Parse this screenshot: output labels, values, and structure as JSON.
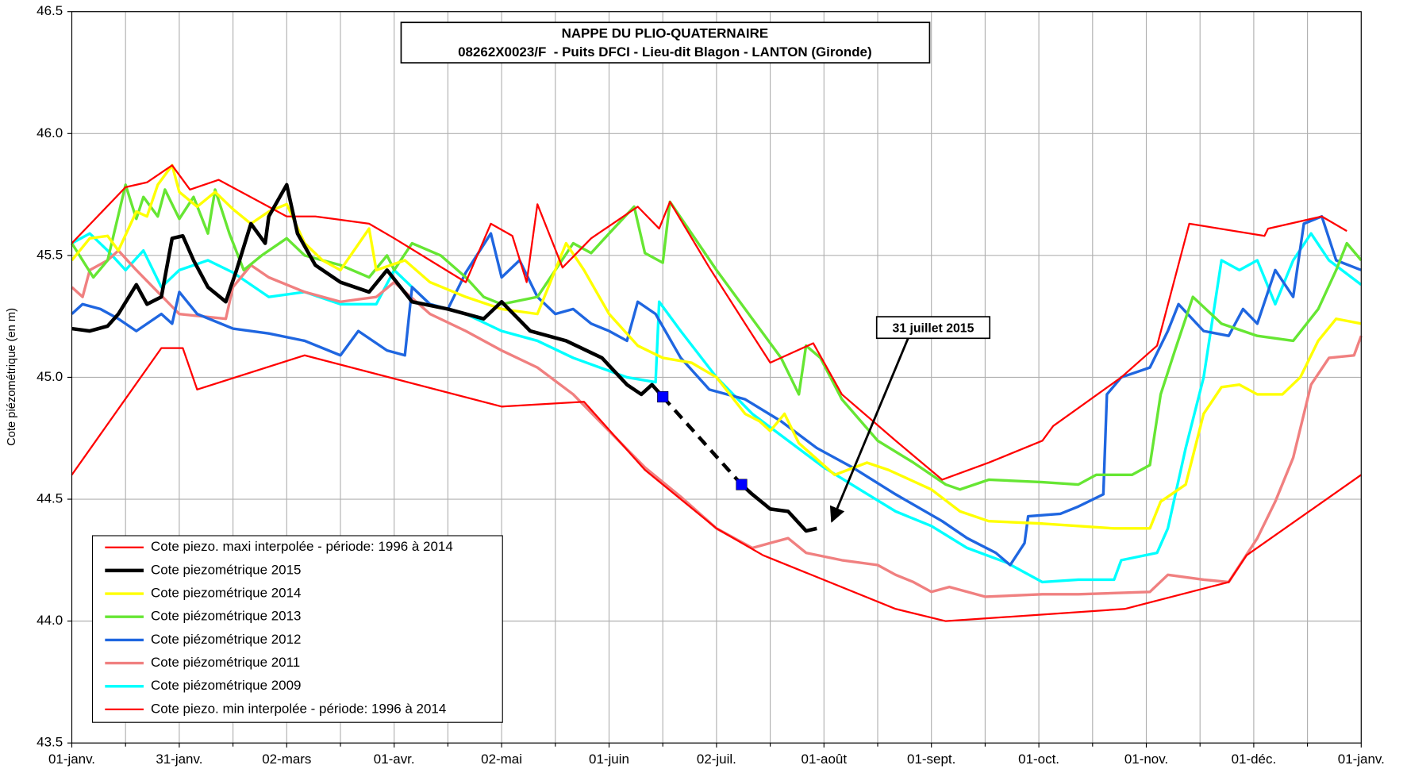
{
  "chart_data": {
    "type": "line",
    "title": "NAPPE DU PLIO-QUATERNAIRE",
    "subtitle": "08262X0023/F  - Puits DFCI - Lieu-dit Blagon - LANTON (Gironde)",
    "ylabel": "Cote piézométrique (en m)",
    "annotation": "31 juillet 2015",
    "xlim": [
      0,
      360
    ],
    "xticks": [
      {
        "value": 0,
        "label": "01-janv."
      },
      {
        "value": 30,
        "label": "31-janv."
      },
      {
        "value": 60,
        "label": "02-mars"
      },
      {
        "value": 90,
        "label": "01-avr."
      },
      {
        "value": 120,
        "label": "02-mai"
      },
      {
        "value": 150,
        "label": "01-juin"
      },
      {
        "value": 180,
        "label": "02-juil."
      },
      {
        "value": 210,
        "label": "01-août"
      },
      {
        "value": 240,
        "label": "01-sept."
      },
      {
        "value": 270,
        "label": "01-oct."
      },
      {
        "value": 300,
        "label": "01-nov."
      },
      {
        "value": 330,
        "label": "01-déc."
      },
      {
        "value": 360,
        "label": "01-janv."
      }
    ],
    "xminorticks": [
      15,
      45,
      75,
      105,
      135,
      165,
      195,
      225,
      255,
      285,
      315,
      345
    ],
    "ylim": [
      43.5,
      46.5
    ],
    "yticks": [
      43.5,
      {
        "value": 44,
        "label": "44.0"
      },
      44.5,
      {
        "value": 45,
        "label": "45.0"
      },
      45.5,
      {
        "value": 46,
        "label": "46.0"
      },
      46.5
    ],
    "grid": true,
    "legend": "lower left",
    "series": [
      {
        "name": "Cote piezo. maxi interpolée - période: 1996 à 2014",
        "color": "#ff0000",
        "line_width": 2,
        "x": [
          0,
          15,
          21,
          28,
          33,
          41,
          60,
          68,
          73,
          83,
          90,
          100,
          110,
          117,
          123,
          127,
          130,
          137,
          145,
          158,
          164,
          167,
          178,
          188,
          195,
          207,
          215,
          230,
          243,
          256,
          271,
          274,
          293,
          303,
          312,
          333,
          334,
          349,
          356
        ],
        "values": [
          45.55,
          45.78,
          45.8,
          45.87,
          45.77,
          45.81,
          45.66,
          45.66,
          45.65,
          45.63,
          45.57,
          45.48,
          45.39,
          45.63,
          45.58,
          45.39,
          45.71,
          45.45,
          45.57,
          45.7,
          45.61,
          45.72,
          45.45,
          45.22,
          45.06,
          45.14,
          44.93,
          44.74,
          44.58,
          44.65,
          44.74,
          44.8,
          45.0,
          45.13,
          45.63,
          45.58,
          45.61,
          45.66,
          45.6
        ]
      },
      {
        "name": "Cote piezométrique 2015",
        "color": "#000000",
        "line_width": 4,
        "gap_style": "dashed",
        "marker_color": "#0000ff",
        "x": [
          0,
          5,
          10,
          13,
          18,
          21,
          25,
          28,
          31,
          34,
          38,
          43,
          46,
          50,
          54,
          55,
          60,
          63,
          68,
          75,
          83,
          88,
          95,
          105,
          115,
          120,
          128,
          138,
          148,
          155,
          159,
          162,
          165,
          176,
          187,
          190,
          195,
          200,
          205,
          208
        ],
        "values": [
          45.2,
          45.19,
          45.21,
          45.26,
          45.38,
          45.3,
          45.33,
          45.57,
          45.58,
          45.48,
          45.37,
          45.31,
          45.44,
          45.63,
          45.55,
          45.66,
          45.79,
          45.59,
          45.46,
          45.39,
          45.35,
          45.44,
          45.31,
          45.28,
          45.24,
          45.31,
          45.19,
          45.15,
          45.08,
          44.97,
          44.93,
          44.97,
          44.92,
          null,
          44.56,
          44.52,
          44.46,
          44.45,
          44.37,
          44.38
        ]
      },
      {
        "name": "Cote piezométrique 2014",
        "color": "#ffff00",
        "line_width": 3,
        "x": [
          0,
          5,
          10,
          13,
          18,
          21,
          24,
          28,
          30,
          35,
          40,
          45,
          50,
          55,
          60,
          65,
          70,
          75,
          83,
          85,
          93,
          100,
          110,
          120,
          130,
          138,
          143,
          150,
          158,
          165,
          173,
          180,
          188,
          192,
          195,
          199,
          203,
          213,
          222,
          228,
          240,
          248,
          256,
          271,
          281,
          291,
          301,
          304,
          311,
          316,
          321,
          326,
          331,
          338,
          343,
          348,
          353,
          360
        ],
        "values": [
          45.48,
          45.57,
          45.58,
          45.52,
          45.68,
          45.66,
          45.79,
          45.87,
          45.76,
          45.7,
          45.76,
          45.69,
          45.63,
          45.68,
          45.71,
          45.55,
          45.48,
          45.44,
          45.61,
          45.44,
          45.48,
          45.39,
          45.33,
          45.28,
          45.26,
          45.55,
          45.44,
          45.26,
          45.13,
          45.08,
          45.06,
          45.0,
          44.85,
          44.82,
          44.78,
          44.85,
          44.73,
          44.6,
          44.65,
          44.62,
          44.54,
          44.45,
          44.41,
          44.4,
          44.39,
          44.38,
          44.38,
          44.49,
          44.56,
          44.85,
          44.96,
          44.97,
          44.93,
          44.93,
          45.0,
          45.15,
          45.24,
          45.22
        ]
      },
      {
        "name": "Cote piézométrique 2013",
        "color": "#66e633",
        "line_width": 3,
        "x": [
          0,
          3,
          6,
          10,
          15,
          18,
          20,
          24,
          26,
          30,
          34,
          38,
          40,
          44,
          48,
          53,
          60,
          65,
          75,
          83,
          88,
          90,
          95,
          103,
          110,
          115,
          120,
          130,
          135,
          140,
          145,
          150,
          157,
          160,
          165,
          167,
          180,
          190,
          198,
          203,
          205,
          209,
          215,
          225,
          235,
          244,
          248,
          256,
          271,
          281,
          286,
          296,
          301,
          304,
          308,
          313,
          321,
          331,
          341,
          348,
          353,
          356,
          360
        ],
        "values": [
          45.55,
          45.48,
          45.41,
          45.48,
          45.79,
          45.65,
          45.74,
          45.66,
          45.77,
          45.65,
          45.74,
          45.59,
          45.77,
          45.59,
          45.44,
          45.5,
          45.57,
          45.5,
          45.46,
          45.41,
          45.5,
          45.44,
          45.55,
          45.5,
          45.41,
          45.33,
          45.3,
          45.33,
          45.44,
          45.55,
          45.51,
          45.59,
          45.7,
          45.51,
          45.47,
          45.72,
          45.44,
          45.24,
          45.08,
          44.93,
          45.13,
          45.08,
          44.91,
          44.74,
          44.65,
          44.56,
          44.54,
          44.58,
          44.57,
          44.56,
          44.6,
          44.6,
          44.64,
          44.93,
          45.11,
          45.33,
          45.22,
          45.17,
          45.15,
          45.28,
          45.44,
          45.55,
          45.48
        ]
      },
      {
        "name": "Cote piézométrique 2012",
        "color": "#1f66e0",
        "line_width": 3,
        "x": [
          0,
          3,
          8,
          13,
          18,
          25,
          28,
          30,
          35,
          45,
          55,
          65,
          75,
          80,
          88,
          93,
          95,
          100,
          105,
          110,
          117,
          120,
          125,
          130,
          135,
          140,
          145,
          150,
          155,
          158,
          163,
          170,
          178,
          188,
          198,
          208,
          218,
          230,
          243,
          250,
          258,
          262,
          266,
          267,
          276,
          281,
          288,
          289,
          293,
          301,
          306,
          309,
          316,
          323,
          327,
          331,
          336,
          341,
          344,
          349,
          353,
          360
        ],
        "values": [
          45.26,
          45.3,
          45.28,
          45.24,
          45.19,
          45.26,
          45.22,
          45.35,
          45.26,
          45.2,
          45.18,
          45.15,
          45.09,
          45.19,
          45.11,
          45.09,
          45.37,
          45.3,
          45.28,
          45.43,
          45.59,
          45.41,
          45.48,
          45.33,
          45.26,
          45.28,
          45.22,
          45.19,
          45.15,
          45.31,
          45.26,
          45.08,
          44.95,
          44.91,
          44.82,
          44.71,
          44.63,
          44.52,
          44.41,
          44.34,
          44.28,
          44.23,
          44.32,
          44.43,
          44.44,
          44.47,
          44.52,
          44.93,
          45.0,
          45.04,
          45.19,
          45.3,
          45.19,
          45.17,
          45.28,
          45.22,
          45.44,
          45.33,
          45.63,
          45.66,
          45.48,
          45.44
        ]
      },
      {
        "name": "Cote piézométrique 2011",
        "color": "#f08080",
        "line_width": 3,
        "x": [
          0,
          3,
          5,
          10,
          13,
          18,
          30,
          43,
          45,
          50,
          55,
          65,
          75,
          85,
          90,
          100,
          110,
          120,
          130,
          140,
          150,
          160,
          170,
          180,
          190,
          195,
          200,
          205,
          215,
          225,
          230,
          235,
          240,
          245,
          255,
          271,
          281,
          301,
          306,
          316,
          323,
          331,
          336,
          341,
          346,
          351,
          358,
          360
        ],
        "values": [
          45.37,
          45.33,
          45.44,
          45.48,
          45.52,
          45.44,
          45.26,
          45.24,
          45.37,
          45.46,
          45.41,
          45.35,
          45.31,
          45.33,
          45.39,
          45.26,
          45.19,
          45.11,
          45.04,
          44.93,
          44.78,
          44.63,
          44.51,
          44.38,
          44.3,
          44.32,
          44.34,
          44.28,
          44.25,
          44.23,
          44.19,
          44.16,
          44.12,
          44.14,
          44.1,
          44.11,
          44.11,
          44.12,
          44.19,
          44.17,
          44.16,
          44.34,
          44.49,
          44.67,
          44.97,
          45.08,
          45.09,
          45.17
        ]
      },
      {
        "name": "Cote piézométrique 2009",
        "color": "#00ffff",
        "line_width": 3,
        "x": [
          0,
          5,
          10,
          15,
          20,
          25,
          30,
          38,
          45,
          55,
          65,
          75,
          85,
          90,
          100,
          110,
          120,
          130,
          140,
          155,
          163,
          164,
          170,
          180,
          190,
          200,
          210,
          220,
          230,
          240,
          250,
          261,
          271,
          281,
          291,
          293,
          303,
          306,
          311,
          316,
          321,
          326,
          331,
          336,
          341,
          346,
          351,
          360
        ],
        "values": [
          45.55,
          45.59,
          45.52,
          45.44,
          45.52,
          45.37,
          45.44,
          45.48,
          45.43,
          45.33,
          45.35,
          45.3,
          45.3,
          45.44,
          45.3,
          45.26,
          45.19,
          45.15,
          45.08,
          45.0,
          44.98,
          45.31,
          45.19,
          45.0,
          44.85,
          44.74,
          44.63,
          44.54,
          44.45,
          44.39,
          44.3,
          44.24,
          44.16,
          44.17,
          44.17,
          44.25,
          44.28,
          44.38,
          44.71,
          45.0,
          45.48,
          45.44,
          45.48,
          45.3,
          45.48,
          45.59,
          45.48,
          45.38
        ]
      },
      {
        "name": "Cote piezo. min interpolée - période: 1996 à 2014",
        "color": "#ff0000",
        "line_width": 2,
        "x": [
          0,
          25,
          31,
          35,
          65,
          120,
          143,
          160,
          180,
          193,
          230,
          244,
          294,
          323,
          328,
          360
        ],
        "values": [
          44.6,
          45.12,
          45.12,
          44.95,
          45.09,
          44.88,
          44.9,
          44.62,
          44.38,
          44.27,
          44.05,
          44.0,
          44.05,
          44.16,
          44.27,
          44.6
        ]
      }
    ]
  }
}
